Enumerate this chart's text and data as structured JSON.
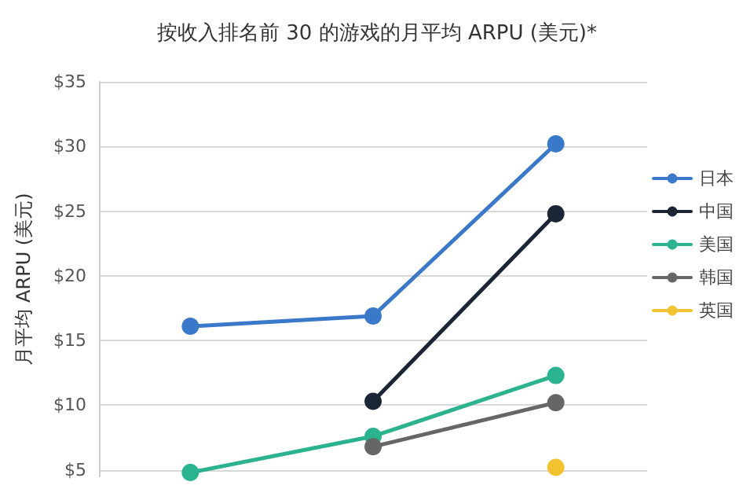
{
  "chart_data": {
    "type": "line",
    "title": "按收入排名前 30 的游戏的月平均 ARPU (美元)*",
    "ylabel": "月平均 ARPU (美元)",
    "categories": [
      null,
      null,
      null
    ],
    "series": [
      {
        "name": "日本",
        "color": "#3a78c9",
        "values": [
          16.1,
          16.9,
          30.2
        ]
      },
      {
        "name": "中国",
        "color": "#1c2536",
        "values": [
          null,
          10.3,
          24.8
        ]
      },
      {
        "name": "美国",
        "color": "#2bb28e",
        "values": [
          4.8,
          7.6,
          12.3
        ]
      },
      {
        "name": "韩国",
        "color": "#666666",
        "values": [
          null,
          6.8,
          10.2
        ]
      },
      {
        "name": "英国",
        "color": "#f2c230",
        "values": [
          null,
          null,
          5.2
        ]
      }
    ],
    "ylim": [
      4.5,
      35
    ],
    "yticks": [
      {
        "value": 5,
        "label": "$5"
      },
      {
        "value": 10,
        "label": "$10"
      },
      {
        "value": 15,
        "label": "$15"
      },
      {
        "value": 20,
        "label": "$20"
      },
      {
        "value": 25,
        "label": "$25"
      },
      {
        "value": 30,
        "label": "$30"
      },
      {
        "value": 35,
        "label": "$35"
      }
    ],
    "grid": "y",
    "legend": "right",
    "marker": "circle",
    "line_style": "solid"
  }
}
